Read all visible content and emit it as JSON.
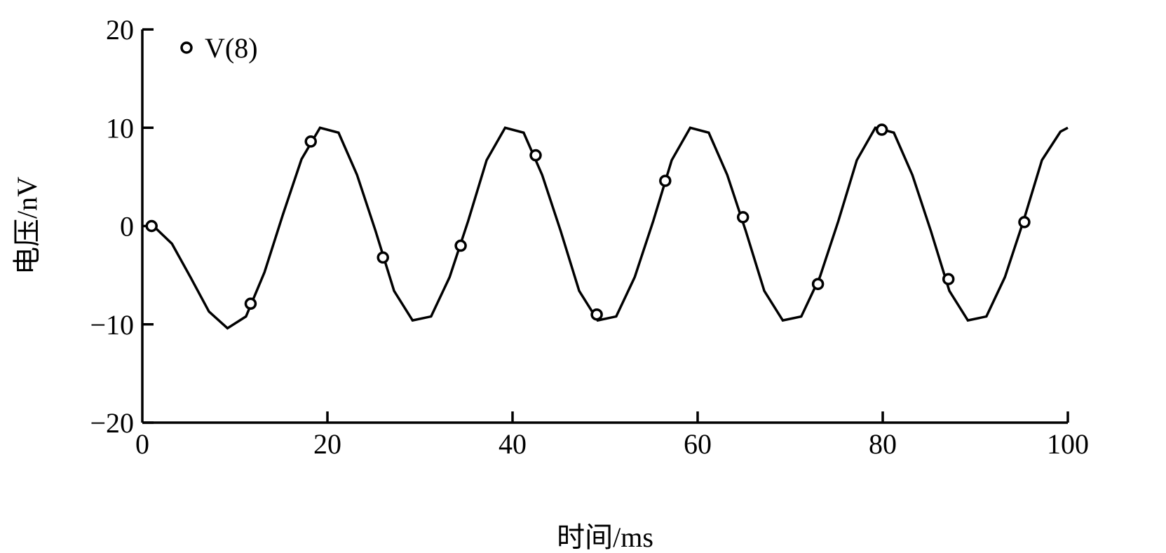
{
  "chart_data": {
    "type": "line",
    "title": "",
    "xlabel": "时间/ms",
    "ylabel": "电压/nV",
    "xlim": [
      0,
      100
    ],
    "ylim": [
      -20,
      20
    ],
    "xticks": [
      "0",
      "20",
      "40",
      "60",
      "80",
      "100"
    ],
    "yticks": [
      "−20",
      "−10",
      "0",
      "10",
      "20"
    ],
    "grid": false,
    "legend": {
      "placement": "top-left",
      "entries": [
        "V(8)"
      ]
    },
    "colors": {
      "line": "#000000",
      "marker": "#000000"
    },
    "series": [
      {
        "kind": "line",
        "x": [
          1.2,
          3.2,
          5.2,
          7.2,
          9.2,
          11.2,
          13.2,
          15.2,
          17.2,
          19.2,
          21.2,
          23.2,
          25.2,
          27.2,
          29.2,
          31.2,
          33.2,
          35.2,
          37.2,
          39.2,
          41.2,
          43.2,
          45.2,
          47.2,
          49.2,
          51.2,
          53.2,
          55.2,
          57.2,
          59.2,
          61.2,
          63.2,
          65.2,
          67.2,
          69.2,
          71.2,
          73.2,
          75.2,
          77.2,
          79.2,
          81.2,
          83.2,
          85.2,
          87.2,
          89.2,
          91.2,
          93.2,
          95.2,
          97.2,
          99.2,
          100
        ],
        "y": [
          0,
          -1.8,
          -5.2,
          -8.7,
          -10.4,
          -9.2,
          -4.7,
          1.2,
          6.8,
          10.0,
          9.5,
          5.2,
          -0.5,
          -6.6,
          -9.6,
          -9.2,
          -5.2,
          0.5,
          6.7,
          10.0,
          9.5,
          5.2,
          -0.5,
          -6.6,
          -9.6,
          -9.2,
          -5.2,
          0.5,
          6.7,
          10.0,
          9.5,
          5.2,
          -0.5,
          -6.6,
          -9.6,
          -9.2,
          -5.2,
          0.5,
          6.7,
          10.0,
          9.5,
          5.2,
          -0.5,
          -6.6,
          -9.6,
          -9.2,
          -5.2,
          0.5,
          6.7,
          9.6,
          10.0
        ]
      },
      {
        "kind": "markers",
        "name": "V(8)",
        "x": [
          1.0,
          11.7,
          18.2,
          26.0,
          34.4,
          42.5,
          49.1,
          56.5,
          64.9,
          73.0,
          79.9,
          87.1,
          95.3
        ],
        "y": [
          0,
          -7.9,
          8.6,
          -3.2,
          -2.0,
          7.2,
          -9.0,
          4.6,
          0.9,
          -5.9,
          9.8,
          -5.4,
          0.4
        ]
      }
    ]
  }
}
